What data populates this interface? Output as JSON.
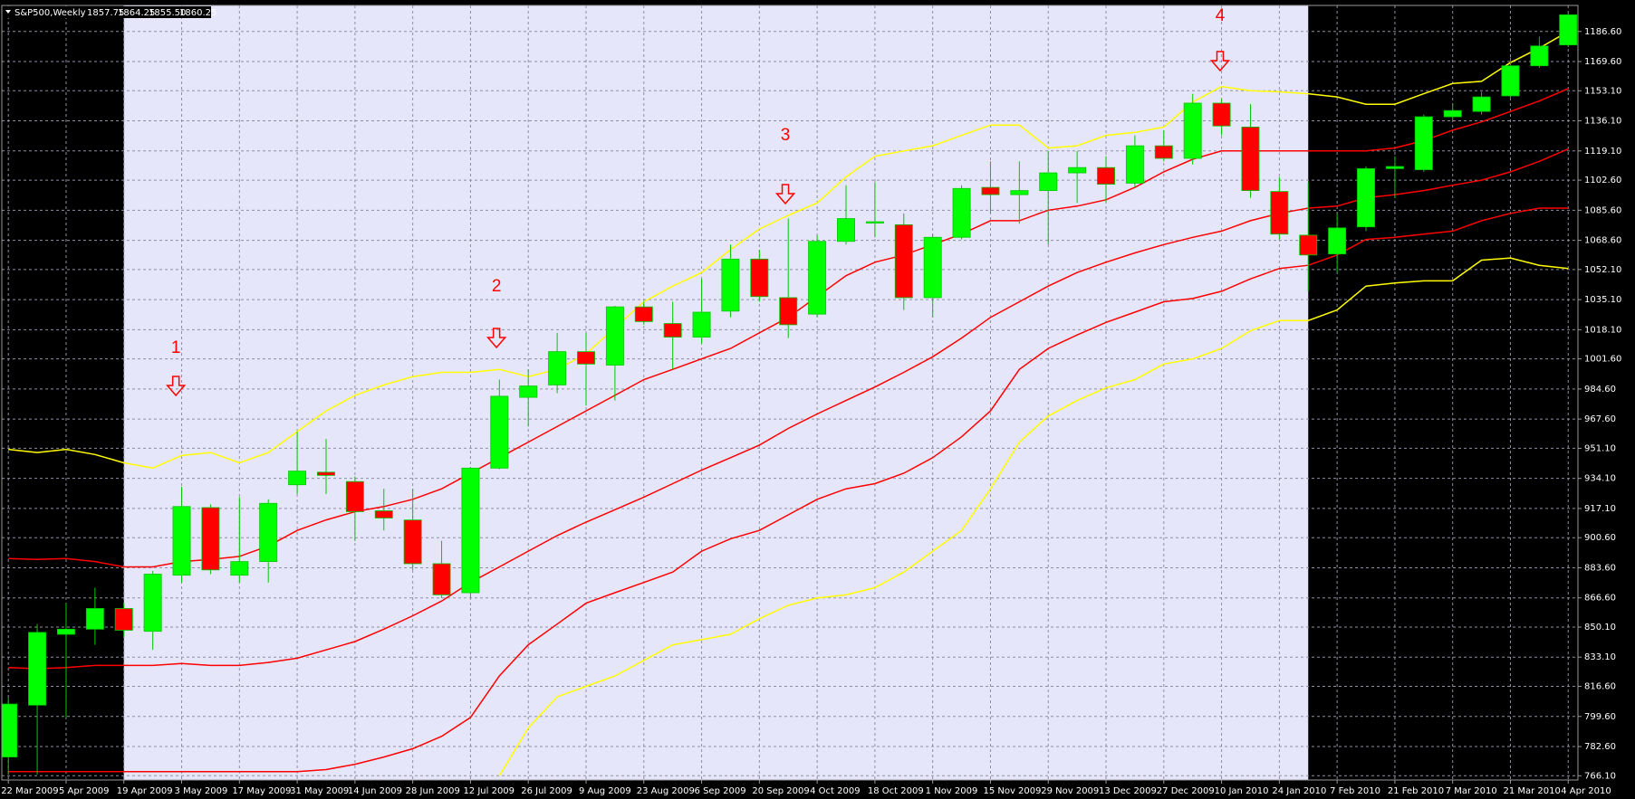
{
  "chart_data": {
    "type": "candlestick",
    "title": "S&P500,Weekly",
    "quote": [
      1857.75,
      1864.25,
      {
        "value": 1855.5,
        "label": "1855.50"
      },
      1860.25
    ],
    "categories": [
      "22 Mar 2009",
      null,
      "5 Apr 2009",
      null,
      "19 Apr 2009",
      null,
      "3 May 2009",
      null,
      "17 May 2009",
      null,
      "31 May 2009",
      null,
      "14 Jun 2009",
      null,
      "28 Jun 2009",
      null,
      "12 Jul 2009",
      null,
      "26 Jul 2009",
      null,
      "9 Aug 2009",
      null,
      "23 Aug 2009",
      null,
      "6 Sep 2009",
      null,
      "20 Sep 2009",
      null,
      "4 Oct 2009",
      null,
      "18 Oct 2009",
      null,
      "1 Nov 2009",
      null,
      "15 Nov 2009",
      null,
      "29 Nov 2009",
      null,
      "13 Dec 2009",
      null,
      "27 Dec 2009",
      null,
      "10 Jan 2010",
      null,
      "24 Jan 2010",
      null,
      "7 Feb 2010",
      null,
      "21 Feb 2010",
      null,
      "7 Mar 2010",
      null,
      "21 Mar 2010",
      null,
      "4 Apr 2010"
    ],
    "open": [
      776.7,
      806.0,
      846.0,
      848.9,
      860.6,
      847.7,
      879.4,
      917.6,
      879.4,
      887.1,
      930.5,
      937.6,
      932.3,
      915.8,
      910.6,
      885.9,
      869.5,
      939.9,
      979.9,
      986.9,
      1005.7,
      998.1,
      1031.0,
      1021.6,
      1013.9,
      1028.6,
      1058.0,
      1036.2,
      1026.9,
      1068.0,
      1078.5,
      1077.4,
      1036.2,
      1070.3,
      1098.5,
      1094.4,
      1096.7,
      1106.7,
      1109.7,
      1100.9,
      1122.0,
      1114.9,
      1146.1,
      1132.6,
      1096.2,
      1071.5,
      1060.9,
      1076.2,
      1109.1,
      1108.5,
      1138.4,
      1141.4,
      1150.2,
      1167.2,
      1179.0
    ],
    "high": [
      810.7,
      851.8,
      863.6,
      872.4,
      863.6,
      881.8,
      929.4,
      919.4,
      923.5,
      922.3,
      960.5,
      956.4,
      935.2,
      928.2,
      928.2,
      898.8,
      940.5,
      989.9,
      995.7,
      1016.3,
      1016.3,
      1031.6,
      1033.9,
      1033.9,
      1046.8,
      1066.2,
      1063.3,
      1080.9,
      1071.5,
      1099.7,
      1101.4,
      1083.8,
      1072.1,
      1099.7,
      1113.2,
      1113.2,
      1119.1,
      1119.1,
      1116.1,
      1127.9,
      1130.8,
      1151.4,
      1148.4,
      1145.5,
      1104.4,
      1101.4,
      1083.8,
      1110.3,
      1116.1,
      1139.6,
      1145.5,
      1152.5,
      1171.9,
      1183.7,
      1197.2
    ],
    "low": [
      766.7,
      766.7,
      799.0,
      840.1,
      844.8,
      837.2,
      875.3,
      880.0,
      875.3,
      875.3,
      925.3,
      925.3,
      898.8,
      904.7,
      882.4,
      866.5,
      866.5,
      939.3,
      963.4,
      982.2,
      975.2,
      978.1,
      1020.9,
      995.7,
      1010.4,
      1025.1,
      1033.9,
      1013.3,
      1025.1,
      1066.2,
      1070.3,
      1029.2,
      1025.1,
      1069.1,
      1083.8,
      1078.0,
      1066.2,
      1089.7,
      1089.7,
      1098.5,
      1113.2,
      1111.4,
      1127.9,
      1092.6,
      1069.1,
      1039.8,
      1050.3,
      1073.8,
      1092.6,
      1107.3,
      1136.7,
      1139.6,
      1148.4,
      1166.0,
      1177.8
    ],
    "close": [
      806.6,
      847.1,
      848.9,
      860.6,
      848.3,
      880.0,
      918.2,
      882.4,
      887.1,
      920.0,
      938.2,
      935.8,
      915.3,
      911.7,
      885.9,
      868.3,
      939.9,
      980.5,
      986.3,
      1005.7,
      998.7,
      1031.0,
      1022.7,
      1013.9,
      1028.0,
      1058.0,
      1036.8,
      1020.9,
      1068.0,
      1080.9,
      1079.1,
      1036.2,
      1070.3,
      1097.9,
      1094.4,
      1096.7,
      1106.7,
      1109.7,
      1100.3,
      1122.0,
      1114.9,
      1146.1,
      1133.2,
      1096.7,
      1072.1,
      1060.3,
      1075.6,
      1109.1,
      1110.3,
      1138.4,
      1141.9,
      1149.6,
      1167.2,
      1178.4,
      1196.0
    ],
    "up_color": "#00ff00",
    "down_color": "#ff0000",
    "wick_color": "#00c800",
    "series": [
      {
        "color": "#ffff00",
        "values": [
          950.5,
          948.7,
          950.5,
          947.6,
          942.9,
          939.9,
          947.0,
          948.7,
          942.9,
          948.7,
          960.5,
          972.2,
          981.0,
          986.9,
          991.6,
          994.0,
          994.0,
          995.7,
          991.6,
          995.7,
          1004.5,
          1019.2,
          1033.9,
          1042.7,
          1050.4,
          1063.3,
          1075.0,
          1082.7,
          1089.7,
          1104.4,
          1116.1,
          1119.1,
          1122.0,
          1127.9,
          1133.7,
          1133.7,
          1120.8,
          1122.0,
          1127.9,
          1129.6,
          1132.6,
          1146.7,
          1155.5,
          1153.1,
          1152.5,
          1151.4,
          1149.6,
          1145.5,
          1145.5,
          1151.4,
          1157.2,
          1158.4,
          1169.0,
          1177.2,
          1186.6
        ]
      },
      {
        "color": "#ff0000",
        "values": [
          888.8,
          888.3,
          888.8,
          887.1,
          884.1,
          884.1,
          887.1,
          888.3,
          890.0,
          895.9,
          904.7,
          910.6,
          915.3,
          918.2,
          922.3,
          928.2,
          937.0,
          945.8,
          954.6,
          963.4,
          972.2,
          981.0,
          989.9,
          995.7,
          1001.6,
          1007.5,
          1016.3,
          1025.1,
          1036.8,
          1048.6,
          1056.2,
          1060.3,
          1066.2,
          1072.1,
          1079.7,
          1079.7,
          1085.6,
          1087.9,
          1091.5,
          1098.5,
          1107.3,
          1114.4,
          1119.1,
          1119.1,
          1119.1,
          1119.1,
          1119.1,
          1119.1,
          1120.8,
          1124.9,
          1130.8,
          1135.5,
          1141.4,
          1147.3,
          1154.3
        ]
      },
      {
        "color": "#ff0000",
        "values": [
          827.2,
          826.6,
          827.2,
          828.4,
          828.4,
          828.4,
          829.5,
          828.4,
          828.4,
          830.1,
          832.5,
          837.2,
          841.9,
          848.9,
          856.5,
          864.8,
          875.3,
          884.1,
          893.0,
          901.8,
          909.4,
          916.4,
          923.5,
          931.1,
          938.8,
          945.8,
          952.9,
          962.3,
          970.5,
          978.1,
          985.7,
          994.0,
          1002.8,
          1013.4,
          1025.1,
          1033.9,
          1042.7,
          1050.4,
          1056.2,
          1061.5,
          1066.2,
          1070.3,
          1073.8,
          1079.7,
          1083.8,
          1086.8,
          1087.9,
          1092.6,
          1094.4,
          1096.7,
          1099.7,
          1102.6,
          1107.3,
          1113.2,
          1120.2
        ]
      },
      {
        "color": "#ff0000",
        "values": [
          768.4,
          768.4,
          768.4,
          768.4,
          768.4,
          768.4,
          768.4,
          768.4,
          768.4,
          768.4,
          768.4,
          769.6,
          772.6,
          776.7,
          781.4,
          788.4,
          799.0,
          822.5,
          840.1,
          851.8,
          863.6,
          869.5,
          875.3,
          881.2,
          893.0,
          900.0,
          904.7,
          913.5,
          922.3,
          928.2,
          931.1,
          937.0,
          945.8,
          957.6,
          972.2,
          995.7,
          1007.5,
          1015.1,
          1022.2,
          1028.0,
          1033.9,
          1035.7,
          1039.8,
          1046.8,
          1052.7,
          1054.5,
          1060.3,
          1069.1,
          1070.3,
          1072.1,
          1073.8,
          1079.7,
          1083.8,
          1086.8,
          1086.8
        ]
      },
      {
        "color": "#ffff00",
        "values": [
          null,
          null,
          null,
          null,
          null,
          null,
          null,
          null,
          null,
          null,
          null,
          null,
          null,
          null,
          null,
          null,
          null,
          766.1,
          793.1,
          810.7,
          816.6,
          822.5,
          831.3,
          840.1,
          843.0,
          846.0,
          854.8,
          862.4,
          866.5,
          868.3,
          872.4,
          881.2,
          893.0,
          904.7,
          928.2,
          954.6,
          969.3,
          978.1,
          985.2,
          989.9,
          998.7,
          1001.6,
          1007.5,
          1017.5,
          1023.3,
          1023.3,
          1029.2,
          1042.7,
          1044.5,
          1045.7,
          1045.7,
          1057.4,
          1058.6,
          1054.5,
          1052.7
        ]
      }
    ],
    "annotations": [
      {
        "text": "1"
      },
      {
        "text": "2"
      },
      {
        "text": "3"
      },
      {
        "text": "4"
      }
    ],
    "ylim": [
      763.7,
      1201.3
    ],
    "yticks": [
      {
        "value": 766.1,
        "label": "766.10"
      },
      {
        "value": 782.6,
        "label": "782.60"
      },
      {
        "value": 799.6,
        "label": "799.60"
      },
      {
        "value": 816.6,
        "label": "816.60"
      },
      {
        "value": 833.1,
        "label": "833.10"
      },
      {
        "value": 850.1,
        "label": "850.10"
      },
      {
        "value": 866.6,
        "label": "866.60"
      },
      {
        "value": 883.6,
        "label": "883.60"
      },
      {
        "value": 900.6,
        "label": "900.60"
      },
      {
        "value": 917.1,
        "label": "917.10"
      },
      {
        "value": 934.1,
        "label": "934.10"
      },
      {
        "value": 951.1,
        "label": "951.10"
      },
      {
        "value": 967.6,
        "label": "967.60"
      },
      {
        "value": 984.6,
        "label": "984.60"
      },
      {
        "value": 1001.6,
        "label": "1001.60"
      },
      {
        "value": 1018.1,
        "label": "1018.10"
      },
      {
        "value": 1035.1,
        "label": "1035.10"
      },
      {
        "value": 1052.1,
        "label": "1052.10"
      },
      {
        "value": 1068.6,
        "label": "1068.60"
      },
      {
        "value": 1085.6,
        "label": "1085.60"
      },
      {
        "value": 1102.6,
        "label": "1102.60"
      },
      {
        "value": 1119.1,
        "label": "1119.10"
      },
      {
        "value": 1136.1,
        "label": "1136.10"
      },
      {
        "value": 1153.1,
        "label": "1153.10"
      },
      {
        "value": 1169.6,
        "label": "1169.60"
      },
      {
        "value": 1186.6,
        "label": "1186.60"
      }
    ],
    "grid": true
  }
}
